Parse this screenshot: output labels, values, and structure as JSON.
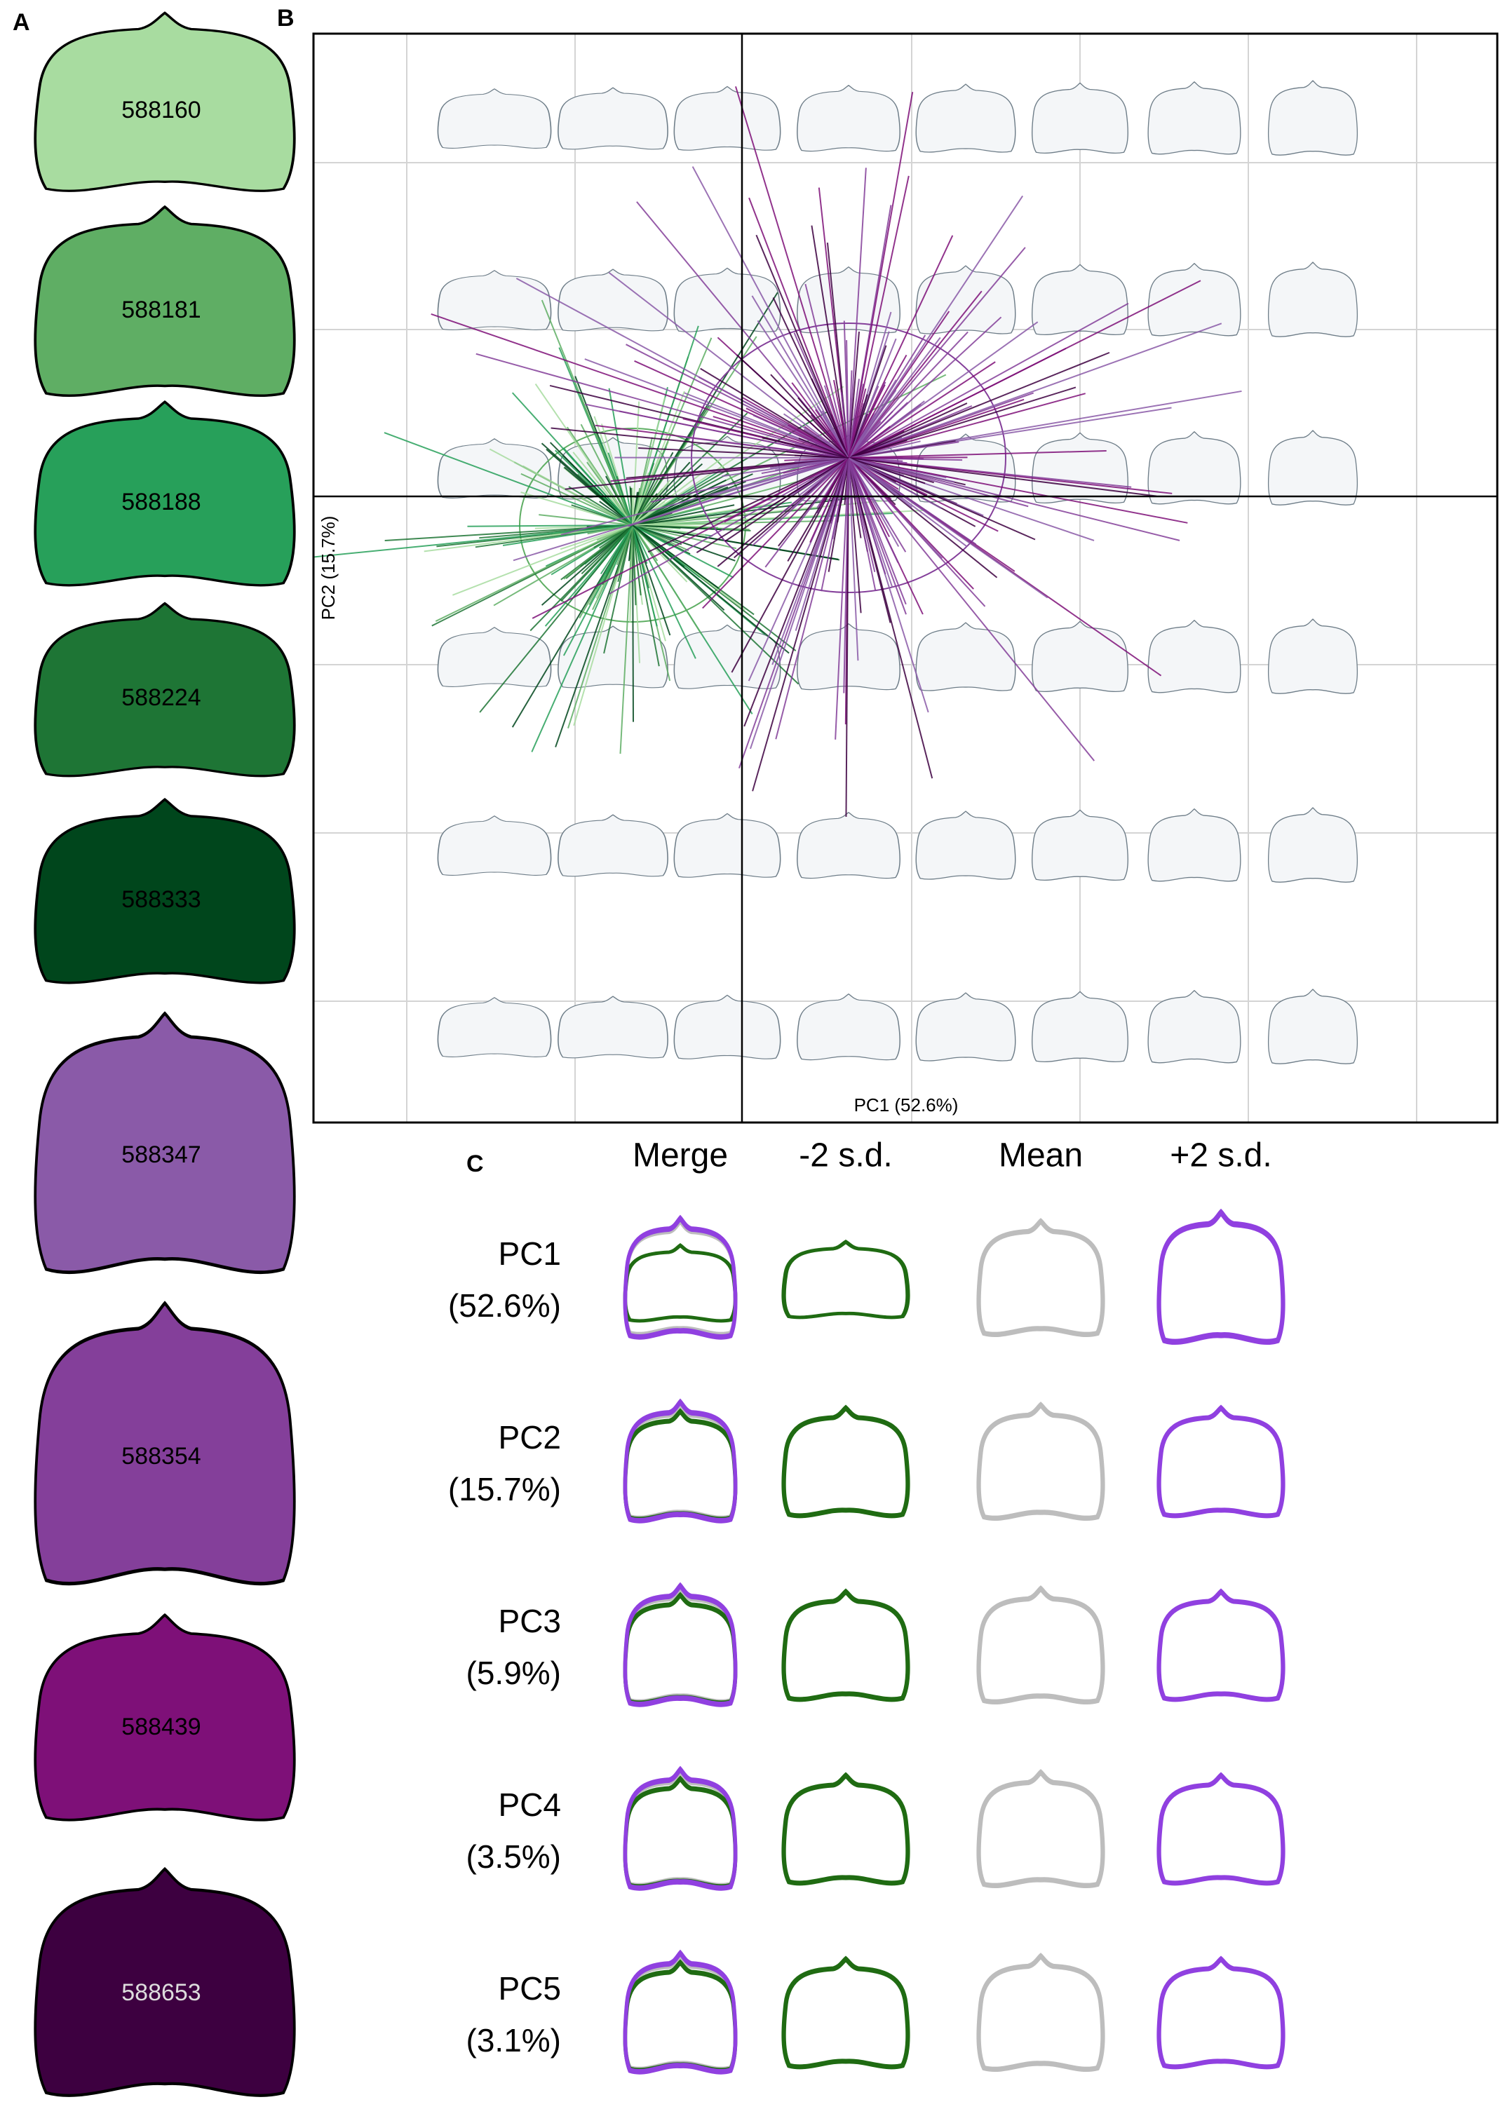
{
  "panel_a": {
    "label": "A",
    "leaves": [
      "588160",
      "588181",
      "588188",
      "588224",
      "588333",
      "588347",
      "588354",
      "588439",
      "588653"
    ]
  },
  "panel_b": {
    "label": "B",
    "x_axis": "PC1 (52.6%)",
    "y_axis": "PC2 (15.7%)"
  },
  "panel_c": {
    "label": "C",
    "columns": [
      "Merge",
      "-2 s.d.",
      "Mean",
      "+2 s.d."
    ],
    "rows": [
      {
        "pc": "PC1",
        "variance": "(52.6%)"
      },
      {
        "pc": "PC2",
        "variance": "(15.7%)"
      },
      {
        "pc": "PC3",
        "variance": "(5.9%)"
      },
      {
        "pc": "PC4",
        "variance": "(3.5%)"
      },
      {
        "pc": "PC5",
        "variance": "(3.1%)"
      }
    ]
  }
}
